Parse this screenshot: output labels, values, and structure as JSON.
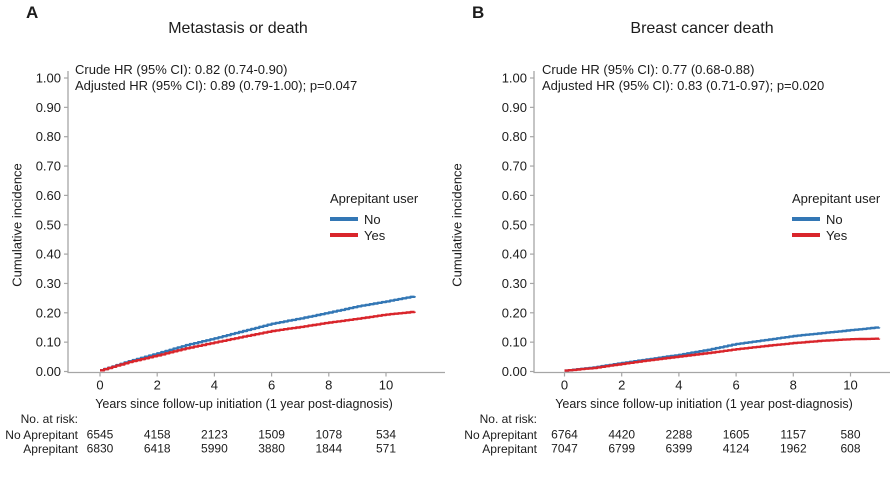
{
  "figure": {
    "background": "#ffffff",
    "text_color": "#1c1c1c",
    "axis_color": "#a6a6a6",
    "blue": "#3377b5",
    "red": "#d9252b"
  },
  "chart_data": [
    {
      "type": "line",
      "panel_label": "A",
      "title": "Metastasis or death",
      "annotation_lines": [
        "Crude HR (95% CI): 0.82 (0.74-0.90)",
        "Adjusted HR (95% CI): 0.89 (0.79-1.00); p=0.047"
      ],
      "xlabel": "Years since follow-up initiation (1 year post-diagnosis)",
      "ylabel": "Cumulative incidence",
      "xlim": [
        0,
        11.2
      ],
      "ylim": [
        0,
        1.0
      ],
      "x_ticks": [
        0,
        2,
        4,
        6,
        8,
        10
      ],
      "y_ticks": [
        "0.00",
        "0.10",
        "0.20",
        "0.30",
        "0.40",
        "0.50",
        "0.60",
        "0.70",
        "0.80",
        "0.90",
        "1.00"
      ],
      "grid": false,
      "legend": {
        "title": "Aprepitant user",
        "position": "right-middle",
        "entries": [
          {
            "label": "No",
            "color": "#3377b5"
          },
          {
            "label": "Yes",
            "color": "#d9252b"
          }
        ]
      },
      "series": [
        {
          "name": "No",
          "color": "#3377b5",
          "x": [
            0,
            1,
            2,
            3,
            4,
            5,
            6,
            7,
            8,
            9,
            10,
            11
          ],
          "y": [
            0.004,
            0.035,
            0.062,
            0.09,
            0.113,
            0.138,
            0.163,
            0.181,
            0.201,
            0.222,
            0.239,
            0.257
          ]
        },
        {
          "name": "Yes",
          "color": "#d9252b",
          "x": [
            0,
            1,
            2,
            3,
            4,
            5,
            6,
            7,
            8,
            9,
            10,
            11
          ],
          "y": [
            0.004,
            0.032,
            0.055,
            0.079,
            0.099,
            0.119,
            0.138,
            0.152,
            0.167,
            0.18,
            0.194,
            0.204
          ]
        }
      ],
      "risk_table": {
        "header": "No. at risk:",
        "at_x": [
          0,
          2,
          4,
          6,
          8,
          10
        ],
        "rows": [
          {
            "label": "No Aprepitant",
            "values": [
              "6545",
              "4158",
              "2123",
              "1509",
              "1078",
              "534"
            ]
          },
          {
            "label": "Aprepitant",
            "values": [
              "6830",
              "6418",
              "5990",
              "3880",
              "1844",
              "571"
            ]
          }
        ]
      }
    },
    {
      "type": "line",
      "panel_label": "B",
      "title": "Breast cancer death",
      "annotation_lines": [
        "Crude HR (95% CI): 0.77 (0.68-0.88)",
        "Adjusted HR (95% CI): 0.83 (0.71-0.97); p=0.020"
      ],
      "xlabel": "Years since follow-up initiation (1 year post-diagnosis)",
      "ylabel": "Cumulative incidence",
      "xlim": [
        0,
        11.2
      ],
      "ylim": [
        0,
        1.0
      ],
      "x_ticks": [
        0,
        2,
        4,
        6,
        8,
        10
      ],
      "y_ticks": [
        "0.00",
        "0.10",
        "0.20",
        "0.30",
        "0.40",
        "0.50",
        "0.60",
        "0.70",
        "0.80",
        "0.90",
        "1.00"
      ],
      "grid": false,
      "legend": {
        "title": "Aprepitant user",
        "position": "right-middle",
        "entries": [
          {
            "label": "No",
            "color": "#3377b5"
          },
          {
            "label": "Yes",
            "color": "#d9252b"
          }
        ]
      },
      "series": [
        {
          "name": "No",
          "color": "#3377b5",
          "x": [
            0,
            1,
            2,
            3,
            4,
            5,
            6,
            7,
            8,
            9,
            10,
            11
          ],
          "y": [
            0.003,
            0.014,
            0.029,
            0.043,
            0.057,
            0.074,
            0.094,
            0.107,
            0.121,
            0.131,
            0.141,
            0.151
          ]
        },
        {
          "name": "Yes",
          "color": "#d9252b",
          "x": [
            0,
            1,
            2,
            3,
            4,
            5,
            6,
            7,
            8,
            9,
            10,
            11
          ],
          "y": [
            0.003,
            0.012,
            0.026,
            0.039,
            0.051,
            0.063,
            0.076,
            0.087,
            0.097,
            0.105,
            0.11,
            0.112
          ]
        }
      ],
      "risk_table": {
        "header": "No. at risk:",
        "at_x": [
          0,
          2,
          4,
          6,
          8,
          10
        ],
        "rows": [
          {
            "label": "No Aprepitant",
            "values": [
              "6764",
              "4420",
              "2288",
              "1605",
              "1157",
              "580"
            ]
          },
          {
            "label": "Aprepitant",
            "values": [
              "7047",
              "6799",
              "6399",
              "4124",
              "1962",
              "608"
            ]
          }
        ]
      }
    }
  ]
}
